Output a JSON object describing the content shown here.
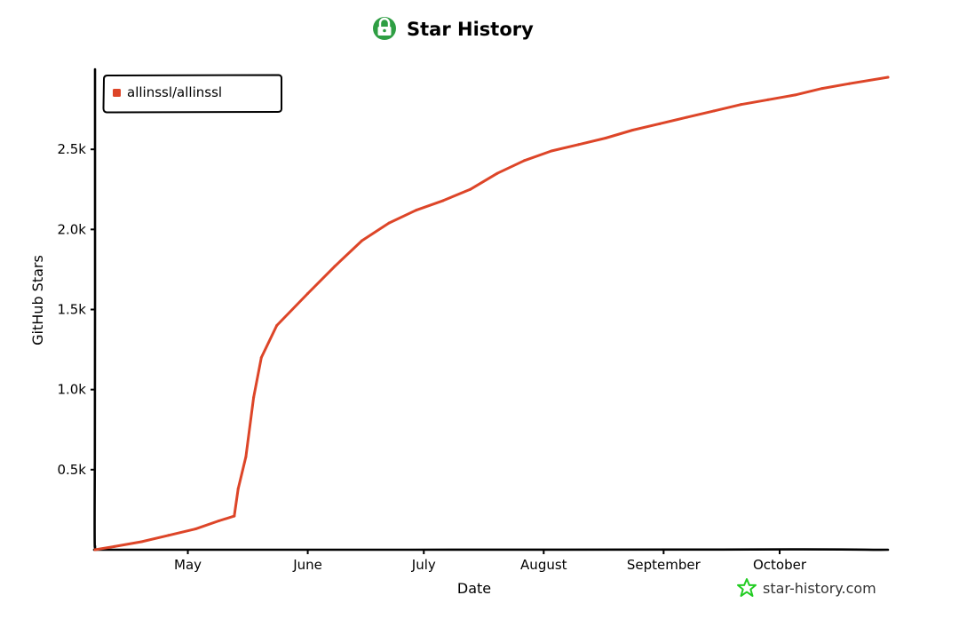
{
  "header": {
    "title": "Star History",
    "logo_icon": "padlock-logo-icon",
    "logo_color": "#2e9e43"
  },
  "footer": {
    "brand_text": "star-history.com",
    "brand_icon": "star-icon",
    "brand_color": "#22cc22"
  },
  "chart_data": {
    "type": "line",
    "title": "Star History",
    "xlabel": "Date",
    "ylabel": "GitHub Stars",
    "x_ticks": [
      "May",
      "June",
      "July",
      "August",
      "September",
      "October"
    ],
    "y_ticks": [
      "0.5k",
      "1.0k",
      "1.5k",
      "2.0k",
      "2.5k"
    ],
    "y_tick_values": [
      500,
      1000,
      1500,
      2000,
      2500
    ],
    "ylim": [
      0,
      3000
    ],
    "xlim": [
      "2025-04-07",
      "2025-10-29"
    ],
    "x_tick_dates": [
      "2025-05-01",
      "2025-06-01",
      "2025-07-01",
      "2025-08-01",
      "2025-09-01",
      "2025-10-01"
    ],
    "grid": false,
    "legend_position": "top-left",
    "series": [
      {
        "name": "allinssl/allinssl",
        "color": "#dd4528",
        "points": [
          [
            "2025-04-07",
            0
          ],
          [
            "2025-04-12",
            20
          ],
          [
            "2025-04-19",
            50
          ],
          [
            "2025-04-26",
            90
          ],
          [
            "2025-05-03",
            130
          ],
          [
            "2025-05-09",
            180
          ],
          [
            "2025-05-13",
            210
          ],
          [
            "2025-05-14",
            380
          ],
          [
            "2025-05-16",
            580
          ],
          [
            "2025-05-18",
            950
          ],
          [
            "2025-05-20",
            1200
          ],
          [
            "2025-05-24",
            1400
          ],
          [
            "2025-06-01",
            1600
          ],
          [
            "2025-06-08",
            1770
          ],
          [
            "2025-06-15",
            1930
          ],
          [
            "2025-06-22",
            2040
          ],
          [
            "2025-06-29",
            2120
          ],
          [
            "2025-07-06",
            2180
          ],
          [
            "2025-07-13",
            2250
          ],
          [
            "2025-07-20",
            2350
          ],
          [
            "2025-07-27",
            2430
          ],
          [
            "2025-08-03",
            2490
          ],
          [
            "2025-08-10",
            2530
          ],
          [
            "2025-08-17",
            2570
          ],
          [
            "2025-08-24",
            2620
          ],
          [
            "2025-08-31",
            2660
          ],
          [
            "2025-09-07",
            2700
          ],
          [
            "2025-09-14",
            2740
          ],
          [
            "2025-09-21",
            2780
          ],
          [
            "2025-09-28",
            2810
          ],
          [
            "2025-10-05",
            2840
          ],
          [
            "2025-10-12",
            2880
          ],
          [
            "2025-10-19",
            2910
          ],
          [
            "2025-10-29",
            2950
          ]
        ]
      }
    ]
  }
}
